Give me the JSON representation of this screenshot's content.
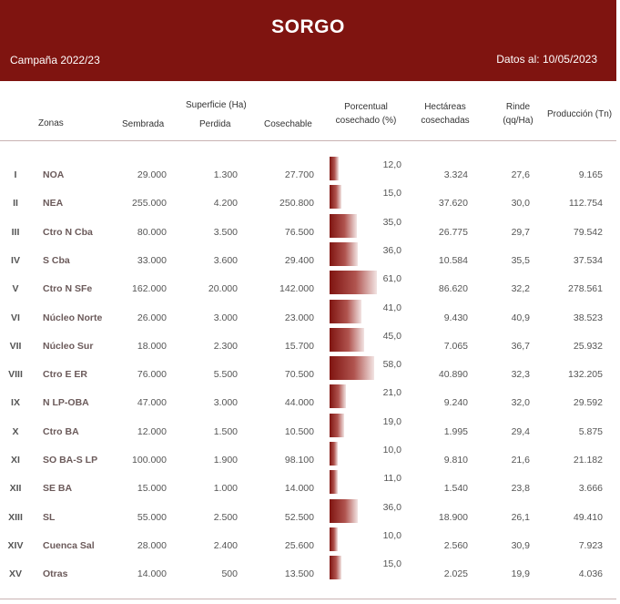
{
  "header": {
    "title": "SORGO",
    "campaign": "Campaña 2022/23",
    "date": "Datos al: 10/05/2023"
  },
  "columns": {
    "zonas": "Zonas",
    "superficie": "Superficie (Ha)",
    "sembrada": "Sembrada",
    "perdida": "Perdida",
    "cosechable": "Cosechable",
    "porcentual": "Porcentual",
    "cosechado": "cosechado (%)",
    "hectareas": "Hectáreas",
    "cosechadas": "cosechadas",
    "rinde": "Rinde",
    "rinde_unit": "(qq/Ha)",
    "produccion": "Producción (Tn)"
  },
  "colors": {
    "header_bg": "#7f1410",
    "bar": "#7f1410"
  },
  "rows": [
    {
      "roman": "I",
      "zone": "NOA",
      "sembrada": "29.000",
      "perdida": "1.300",
      "cosechable": "27.700",
      "pct": "12,0",
      "pct_value": 12.0,
      "hectareas": "3.324",
      "rinde": "27,6",
      "produccion": "9.165"
    },
    {
      "roman": "II",
      "zone": "NEA",
      "sembrada": "255.000",
      "perdida": "4.200",
      "cosechable": "250.800",
      "pct": "15,0",
      "pct_value": 15.0,
      "hectareas": "37.620",
      "rinde": "30,0",
      "produccion": "112.754"
    },
    {
      "roman": "III",
      "zone": "Ctro N Cba",
      "sembrada": "80.000",
      "perdida": "3.500",
      "cosechable": "76.500",
      "pct": "35,0",
      "pct_value": 35.0,
      "hectareas": "26.775",
      "rinde": "29,7",
      "produccion": "79.542"
    },
    {
      "roman": "IV",
      "zone": "S Cba",
      "sembrada": "33.000",
      "perdida": "3.600",
      "cosechable": "29.400",
      "pct": "36,0",
      "pct_value": 36.0,
      "hectareas": "10.584",
      "rinde": "35,5",
      "produccion": "37.534"
    },
    {
      "roman": "V",
      "zone": "Ctro N SFe",
      "sembrada": "162.000",
      "perdida": "20.000",
      "cosechable": "142.000",
      "pct": "61,0",
      "pct_value": 61.0,
      "hectareas": "86.620",
      "rinde": "32,2",
      "produccion": "278.561"
    },
    {
      "roman": "VI",
      "zone": "Núcleo Norte",
      "sembrada": "26.000",
      "perdida": "3.000",
      "cosechable": "23.000",
      "pct": "41,0",
      "pct_value": 41.0,
      "hectareas": "9.430",
      "rinde": "40,9",
      "produccion": "38.523"
    },
    {
      "roman": "VII",
      "zone": "Núcleo Sur",
      "sembrada": "18.000",
      "perdida": "2.300",
      "cosechable": "15.700",
      "pct": "45,0",
      "pct_value": 45.0,
      "hectareas": "7.065",
      "rinde": "36,7",
      "produccion": "25.932"
    },
    {
      "roman": "VIII",
      "zone": "Ctro E ER",
      "sembrada": "76.000",
      "perdida": "5.500",
      "cosechable": "70.500",
      "pct": "58,0",
      "pct_value": 58.0,
      "hectareas": "40.890",
      "rinde": "32,3",
      "produccion": "132.205"
    },
    {
      "roman": "IX",
      "zone": "N LP-OBA",
      "sembrada": "47.000",
      "perdida": "3.000",
      "cosechable": "44.000",
      "pct": "21,0",
      "pct_value": 21.0,
      "hectareas": "9.240",
      "rinde": "32,0",
      "produccion": "29.592"
    },
    {
      "roman": "X",
      "zone": "Ctro BA",
      "sembrada": "12.000",
      "perdida": "1.500",
      "cosechable": "10.500",
      "pct": "19,0",
      "pct_value": 19.0,
      "hectareas": "1.995",
      "rinde": "29,4",
      "produccion": "5.875"
    },
    {
      "roman": "XI",
      "zone": "SO BA-S LP",
      "sembrada": "100.000",
      "perdida": "1.900",
      "cosechable": "98.100",
      "pct": "10,0",
      "pct_value": 10.0,
      "hectareas": "9.810",
      "rinde": "21,6",
      "produccion": "21.182"
    },
    {
      "roman": "XII",
      "zone": "SE BA",
      "sembrada": "15.000",
      "perdida": "1.000",
      "cosechable": "14.000",
      "pct": "11,0",
      "pct_value": 11.0,
      "hectareas": "1.540",
      "rinde": "23,8",
      "produccion": "3.666"
    },
    {
      "roman": "XIII",
      "zone": "SL",
      "sembrada": "55.000",
      "perdida": "2.500",
      "cosechable": "52.500",
      "pct": "36,0",
      "pct_value": 36.0,
      "hectareas": "18.900",
      "rinde": "26,1",
      "produccion": "49.410"
    },
    {
      "roman": "XIV",
      "zone": "Cuenca Sal",
      "sembrada": "28.000",
      "perdida": "2.400",
      "cosechable": "25.600",
      "pct": "10,0",
      "pct_value": 10.0,
      "hectareas": "2.560",
      "rinde": "30,9",
      "produccion": "7.923"
    },
    {
      "roman": "XV",
      "zone": "Otras",
      "sembrada": "14.000",
      "perdida": "500",
      "cosechable": "13.500",
      "pct": "15,0",
      "pct_value": 15.0,
      "hectareas": "2.025",
      "rinde": "19,9",
      "produccion": "4.036"
    }
  ]
}
